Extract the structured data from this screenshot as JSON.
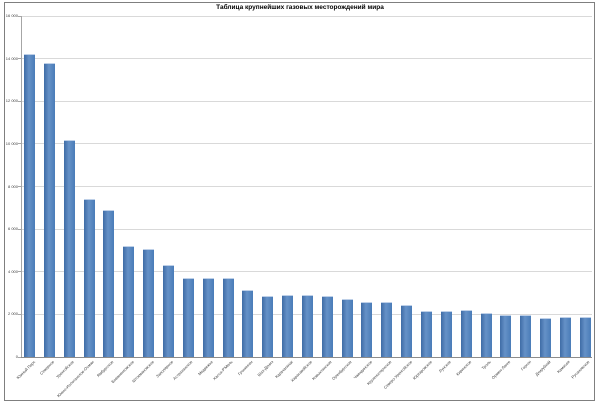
{
  "window": {
    "background": "#ffffff",
    "frame_border_color": "#7f7f7f"
  },
  "chart_data": {
    "type": "bar",
    "title": "Таблица крупнейших газовых месторождений мира",
    "xlabel": "",
    "ylabel": "",
    "legend": "none",
    "grid": true,
    "ylim": [
      0,
      16000
    ],
    "ytick_step": 2000,
    "ytick_values": [
      0,
      2000,
      4000,
      6000,
      8000,
      10000,
      12000,
      14000,
      16000
    ],
    "ytick_labels": [
      "0",
      "2 000",
      "4 000",
      "6 000",
      "8 000",
      "10 000",
      "12 000",
      "14 000",
      "16 000"
    ],
    "categories": [
      "Южный Парс",
      "Северное",
      "Уренгойское",
      "Южно-Иолотанское-Осман",
      "Ямбургское",
      "Бованенковское",
      "Штокмановское",
      "Заполярное",
      "Астраханское",
      "Медвежье",
      "Хасси-Р'Мель",
      "Гронинген",
      "Шах-Дениз",
      "Карачаганак",
      "Харасавэйское",
      "Ковыктинское",
      "Оренбургское",
      "Чаяндинское",
      "Крузенштернское",
      "Северо-Уренгойское",
      "Юрхаровское",
      "Лунское",
      "Киринское",
      "Троль",
      "Ормен-Ланге",
      "Горгон",
      "Дхирубхай",
      "Камисея",
      "Русановское"
    ],
    "values": [
      14200,
      13800,
      10200,
      7400,
      6900,
      5200,
      5080,
      4300,
      3700,
      3700,
      3690,
      3160,
      2880,
      2890,
      2930,
      2880,
      2720,
      2560,
      2570,
      2460,
      2150,
      2180,
      2190,
      2070,
      1960,
      1990,
      1850,
      1900,
      1900
    ],
    "bar_color": "#4F81BD",
    "bar_highlight_color": "#BED0E8",
    "gridline_color": "#D9D9D9",
    "axis_color": "#8C8C8C",
    "tick_label_color": "#404040"
  }
}
